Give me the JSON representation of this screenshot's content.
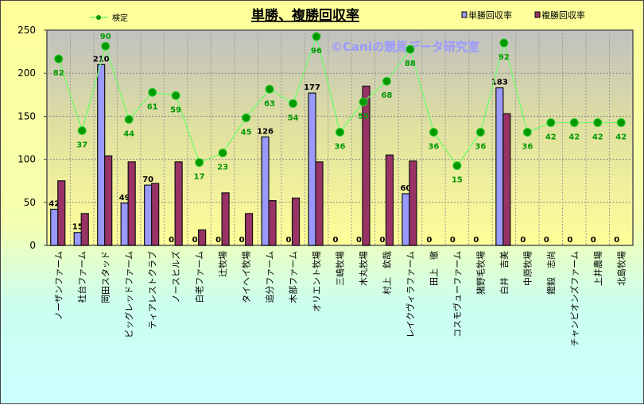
{
  "chart_data": {
    "type": "bar",
    "title": "単勝、複勝回収率",
    "watermark": "©Caniの競馬データ研究室",
    "xlabel": "",
    "ylabel": "",
    "ylim": [
      0,
      250
    ],
    "yticks": [
      0,
      50,
      100,
      150,
      200,
      250
    ],
    "y2lim": [
      -35,
      100
    ],
    "grid": true,
    "legend_placement": "top",
    "categories": [
      "ノーザンファーム",
      "社台ファーム",
      "岡田スタッド",
      "ビッグレッドファーム",
      "ティアレストクラブ",
      "ノースヒルズ",
      "白老ファーム",
      "辻牧場",
      "タイヘイ牧場",
      "追分ファーム",
      "木部ファーム",
      "オリエント牧場",
      "三嶋牧場",
      "木丸牧場",
      "村上　欽哉",
      "レイクヴィラファーム",
      "田上　徹",
      "コスモヴューファーム",
      "猪野毛牧場",
      "白井　吉美",
      "中原牧場",
      "鐙毅　志尚",
      "チャンピオンズファーム",
      "上井農場",
      "北島牧場"
    ],
    "series": [
      {
        "name": "単勝回収率",
        "type": "bar",
        "color": "#9999ff",
        "labeled": true,
        "values": [
          42,
          15,
          210,
          49,
          70,
          0,
          0,
          0,
          0,
          126,
          0,
          177,
          0,
          0,
          0,
          60,
          0,
          0,
          0,
          183,
          0,
          0,
          0,
          0,
          0
        ]
      },
      {
        "name": "複勝回収率",
        "type": "bar",
        "color": "#993366",
        "labeled": false,
        "values": [
          75,
          37,
          104,
          97,
          72,
          97,
          18,
          61,
          37,
          52,
          55,
          97,
          0,
          185,
          105,
          98,
          0,
          0,
          0,
          153,
          0,
          0,
          0,
          0,
          0
        ]
      },
      {
        "name": "検定",
        "type": "line",
        "axis": "secondary",
        "color": "#66ff66",
        "marker": "#009900",
        "label_color": "#009900",
        "values": [
          82,
          37,
          90,
          44,
          61,
          59,
          17,
          23,
          45,
          63,
          54,
          96,
          36,
          55,
          68,
          88,
          36,
          15,
          36,
          92,
          36,
          42,
          42,
          42,
          42
        ]
      }
    ]
  }
}
